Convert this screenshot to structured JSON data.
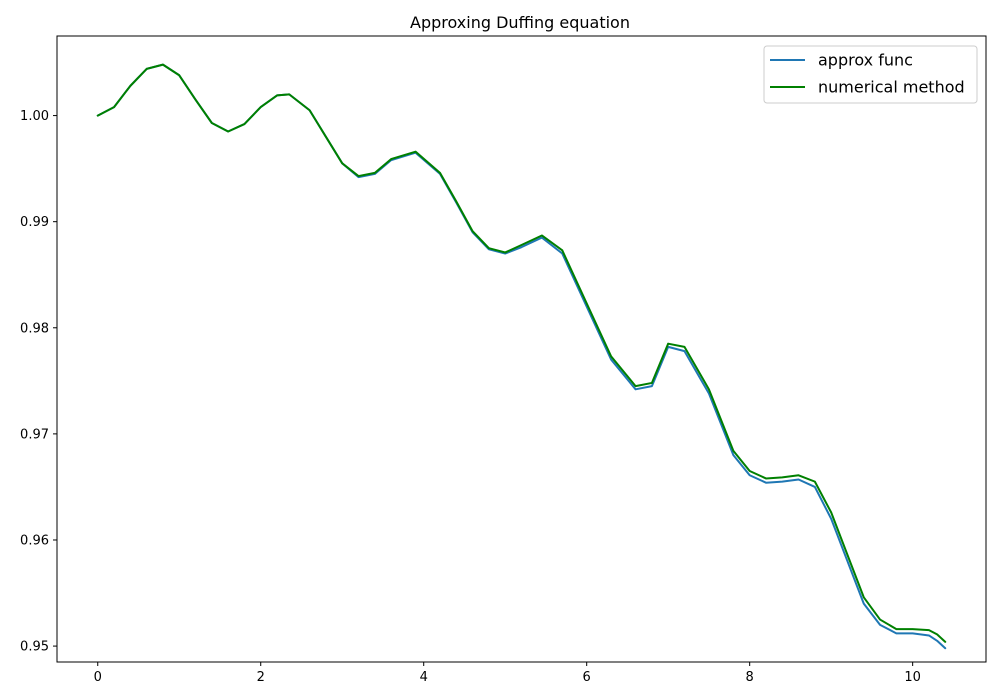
{
  "chart_data": {
    "type": "line",
    "title": "Approxing Duffing equation",
    "xlabel": "",
    "ylabel": "",
    "xlim": [
      -0.5,
      10.9
    ],
    "ylim": [
      0.9485,
      1.0075
    ],
    "xticks": [
      0,
      2,
      4,
      6,
      8,
      10
    ],
    "yticks": [
      0.95,
      0.96,
      0.97,
      0.98,
      0.99,
      1.0
    ],
    "xtick_labels": [
      "0",
      "2",
      "4",
      "6",
      "8",
      "10"
    ],
    "ytick_labels": [
      "0.95",
      "0.96",
      "0.97",
      "0.98",
      "0.99",
      "1.00"
    ],
    "grid": false,
    "legend_position": "upper right",
    "x": [
      0.0,
      0.2,
      0.4,
      0.6,
      0.8,
      1.0,
      1.2,
      1.4,
      1.6,
      1.8,
      2.0,
      2.2,
      2.35,
      2.6,
      2.8,
      3.0,
      3.2,
      3.4,
      3.6,
      3.9,
      4.2,
      4.4,
      4.6,
      4.8,
      5.0,
      5.2,
      5.45,
      5.7,
      6.0,
      6.3,
      6.6,
      6.8,
      7.0,
      7.2,
      7.5,
      7.8,
      8.0,
      8.2,
      8.4,
      8.6,
      8.8,
      9.0,
      9.2,
      9.4,
      9.6,
      9.8,
      10.0,
      10.2,
      10.3,
      10.4
    ],
    "series": [
      {
        "name": "approx func",
        "color": "#1f77b4",
        "values": [
          1.0,
          1.0008,
          1.0028,
          1.0044,
          1.0048,
          1.0038,
          1.0015,
          0.9993,
          0.9985,
          0.9992,
          1.0008,
          1.0019,
          1.002,
          1.0005,
          0.998,
          0.9955,
          0.9942,
          0.9945,
          0.9958,
          0.9965,
          0.9945,
          0.9918,
          0.989,
          0.9874,
          0.987,
          0.9876,
          0.9885,
          0.987,
          0.982,
          0.977,
          0.9742,
          0.9745,
          0.9782,
          0.9778,
          0.9738,
          0.968,
          0.9661,
          0.9654,
          0.9655,
          0.9657,
          0.965,
          0.962,
          0.958,
          0.954,
          0.952,
          0.9512,
          0.9512,
          0.951,
          0.9505,
          0.9498
        ]
      },
      {
        "name": "numerical method",
        "color": "#008000",
        "values": [
          1.0,
          1.0008,
          1.0028,
          1.0044,
          1.0048,
          1.0038,
          1.0015,
          0.9993,
          0.9985,
          0.9992,
          1.0008,
          1.0019,
          1.002,
          1.0005,
          0.998,
          0.9955,
          0.9943,
          0.9946,
          0.9959,
          0.9966,
          0.9946,
          0.9919,
          0.9891,
          0.9875,
          0.9871,
          0.9878,
          0.9887,
          0.9873,
          0.9823,
          0.9773,
          0.9745,
          0.9748,
          0.9785,
          0.9782,
          0.9742,
          0.9684,
          0.9665,
          0.9658,
          0.9659,
          0.9661,
          0.9655,
          0.9626,
          0.9586,
          0.9546,
          0.9525,
          0.9516,
          0.9516,
          0.9515,
          0.9511,
          0.9504
        ]
      }
    ]
  }
}
